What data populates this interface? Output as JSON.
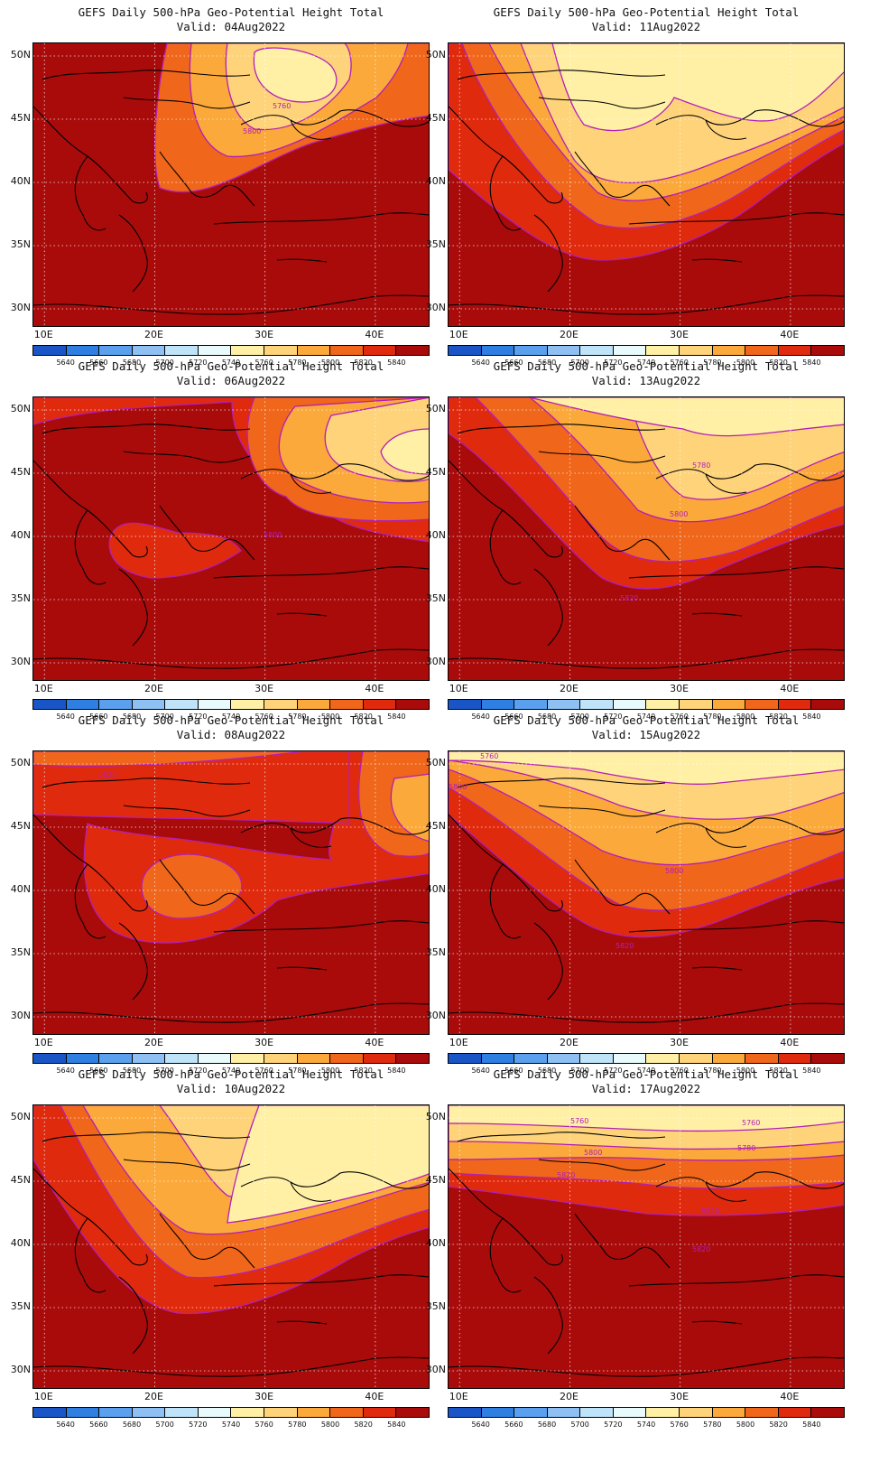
{
  "figure": {
    "title": "GEFS Daily 500-hPa Geo-Potential Height Total",
    "valid_prefix": "Valid:",
    "lat_labels": [
      "50N",
      "45N",
      "40N",
      "35N",
      "30N"
    ],
    "lon_labels": [
      "10E",
      "20E",
      "30E",
      "40E"
    ],
    "colorbar_labels": [
      "5640",
      "5660",
      "5680",
      "5700",
      "5720",
      "5740",
      "5760",
      "5780",
      "5800",
      "5820",
      "5840"
    ],
    "colorbar_colors": [
      "#1a55c8",
      "#2f7fe3",
      "#5aa0ef",
      "#8ec0f4",
      "#bfe3f8",
      "#e9fafd",
      "#fff0a6",
      "#fed37a",
      "#fba93b",
      "#f0661a",
      "#e02a0e",
      "#a90b0b"
    ],
    "contour_color": "#b21fb8"
  },
  "panels": [
    {
      "valid": "Valid: 04Aug2022",
      "labels": [
        "5760",
        "5800"
      ]
    },
    {
      "valid": "Valid: 11Aug2022",
      "labels": []
    },
    {
      "valid": "Valid: 06Aug2022",
      "labels": [
        "5800"
      ]
    },
    {
      "valid": "Valid: 13Aug2022",
      "labels": [
        "5780",
        "5800",
        "5820"
      ]
    },
    {
      "valid": "Valid: 08Aug2022",
      "labels": [
        "5820"
      ]
    },
    {
      "valid": "Valid: 15Aug2022",
      "labels": [
        "5760",
        "5800",
        "5800",
        "5820"
      ]
    },
    {
      "valid": "Valid: 10Aug2022",
      "labels": []
    },
    {
      "valid": "Valid: 17Aug2022",
      "labels": [
        "5760",
        "5760",
        "5780",
        "5800",
        "5820",
        "5820",
        "5820"
      ]
    }
  ]
}
